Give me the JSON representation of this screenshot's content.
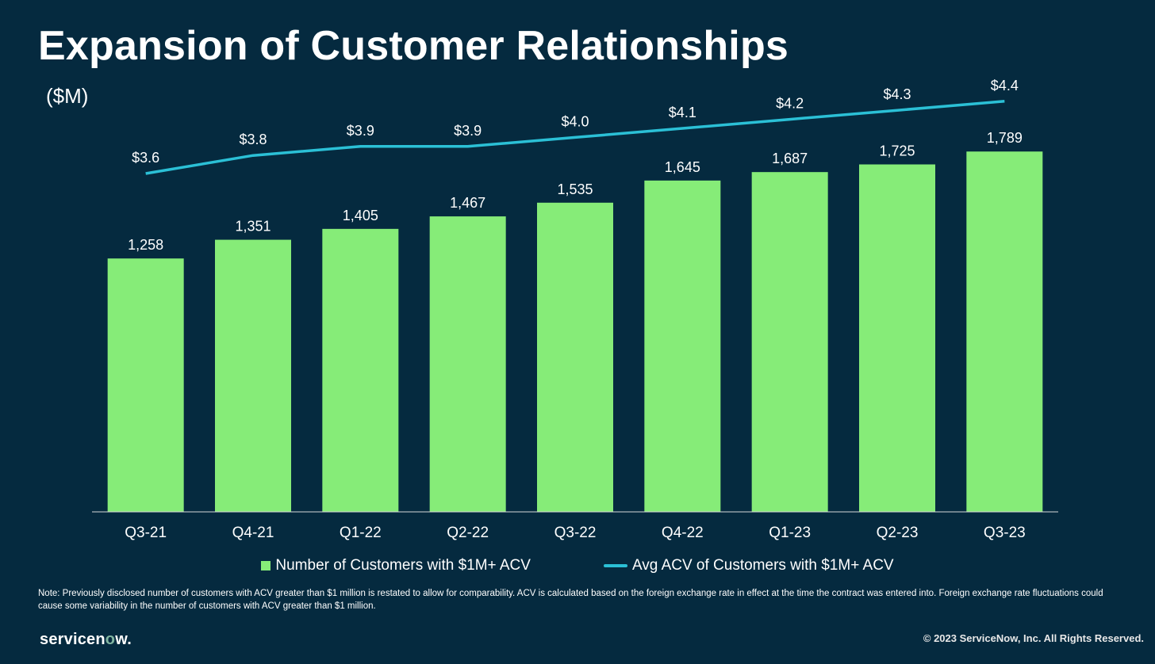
{
  "title": "Expansion of Customer Relationships",
  "unit_label": "($M)",
  "colors": {
    "background": "#052a3f",
    "bar": "#86ec78",
    "line": "#2bc0d6",
    "text": "#ffffff",
    "axis": "#d8d8d8"
  },
  "chart_data": {
    "type": "bar",
    "categories": [
      "Q3-21",
      "Q4-21",
      "Q1-22",
      "Q2-22",
      "Q3-22",
      "Q4-22",
      "Q1-23",
      "Q2-23",
      "Q3-23"
    ],
    "series": [
      {
        "name": "Number of Customers with $1M+ ACV",
        "type": "bar",
        "values": [
          1258,
          1351,
          1405,
          1467,
          1535,
          1645,
          1687,
          1725,
          1789
        ],
        "labels": [
          "1,258",
          "1,351",
          "1,405",
          "1,467",
          "1,535",
          "1,645",
          "1,687",
          "1,725",
          "1,789"
        ],
        "color": "#86ec78"
      },
      {
        "name": "Avg ACV of Customers with $1M+ ACV",
        "type": "line",
        "values": [
          3.6,
          3.8,
          3.9,
          3.9,
          4.0,
          4.1,
          4.2,
          4.3,
          4.4
        ],
        "labels": [
          "$3.6",
          "$3.8",
          "$3.9",
          "$3.9",
          "$4.0",
          "$4.1",
          "$4.2",
          "$4.3",
          "$4.4"
        ],
        "color": "#2bc0d6"
      }
    ],
    "legend_position": "bottom",
    "grid": false
  },
  "note": "Note: Previously disclosed number of customers with ACV greater than $1 million is restated to allow for comparability. ACV is calculated based on the foreign exchange rate in effect at the time the contract was entered into. Foreign exchange rate fluctuations could cause some variability in the number of customers with ACV greater than $1 million.",
  "brand": {
    "prefix": "servicen",
    "o": "o",
    "suffix": "w."
  },
  "copyright": "© 2023 ServiceNow, Inc. All Rights Reserved."
}
